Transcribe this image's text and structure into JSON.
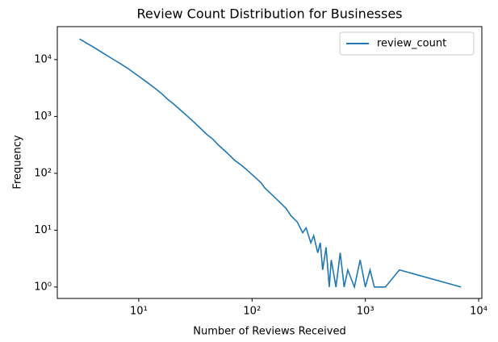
{
  "chart_data": {
    "type": "line",
    "title": "Review Count Distribution for Businesses",
    "xlabel": "Number of Reviews Received",
    "ylabel": "Frequency",
    "xscale": "log",
    "yscale": "log",
    "x": [
      3,
      4,
      5,
      6,
      7,
      8,
      9,
      10,
      12,
      14,
      16,
      18,
      20,
      25,
      30,
      35,
      40,
      45,
      50,
      60,
      70,
      80,
      90,
      100,
      110,
      120,
      130,
      150,
      170,
      200,
      220,
      250,
      280,
      300,
      330,
      350,
      380,
      400,
      420,
      450,
      480,
      500,
      550,
      600,
      650,
      700,
      800,
      900,
      1000,
      1100,
      1200,
      1500,
      2000,
      7000
    ],
    "series": [
      {
        "name": "review_count",
        "color": "#1f77b4",
        "values": [
          23000,
          16500,
          12500,
          10000,
          8300,
          7000,
          5900,
          5100,
          3900,
          3100,
          2500,
          2000,
          1700,
          1150,
          830,
          620,
          480,
          400,
          320,
          230,
          170,
          140,
          115,
          95,
          80,
          68,
          55,
          42,
          33,
          24,
          18,
          14,
          9,
          11,
          6,
          8,
          4,
          6,
          2,
          5,
          1,
          3,
          1,
          4,
          1,
          2,
          1,
          3,
          1,
          2,
          1,
          1,
          2,
          1
        ]
      }
    ],
    "xlim": [
      1.91,
      10670
    ],
    "ylim": [
      0.63,
      38000
    ],
    "xticks": [
      {
        "value": 10,
        "label": "10¹"
      },
      {
        "value": 100,
        "label": "10²"
      },
      {
        "value": 1000,
        "label": "10³"
      },
      {
        "value": 10000,
        "label": "10⁴"
      }
    ],
    "yticks": [
      {
        "value": 1,
        "label": "10⁰"
      },
      {
        "value": 10,
        "label": "10¹"
      },
      {
        "value": 100,
        "label": "10²"
      },
      {
        "value": 1000,
        "label": "10³"
      },
      {
        "value": 10000,
        "label": "10⁴"
      }
    ],
    "legend": "upper right"
  }
}
